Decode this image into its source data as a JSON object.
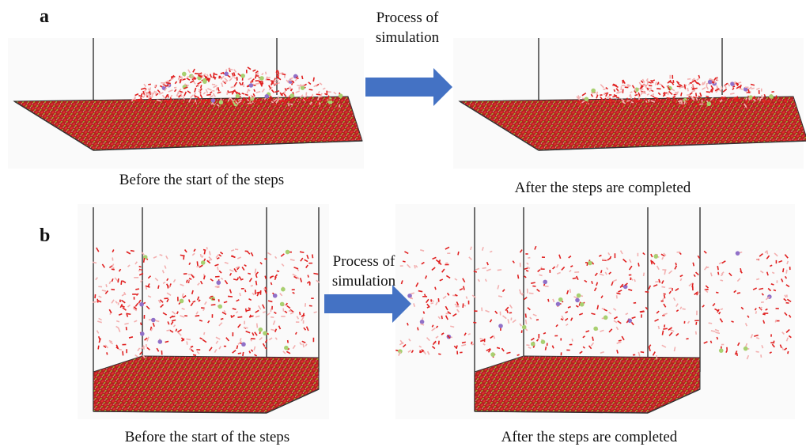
{
  "panels": [
    {
      "label": "a",
      "arrow_text": [
        "Process of",
        "simulation"
      ],
      "before_caption": "Before the start of the steps",
      "after_caption": "After the steps are completed"
    },
    {
      "label": "b",
      "arrow_text": [
        "Process of",
        "simulation"
      ],
      "before_caption": "Before the start of the steps",
      "after_caption": "After the steps are completed"
    }
  ]
}
